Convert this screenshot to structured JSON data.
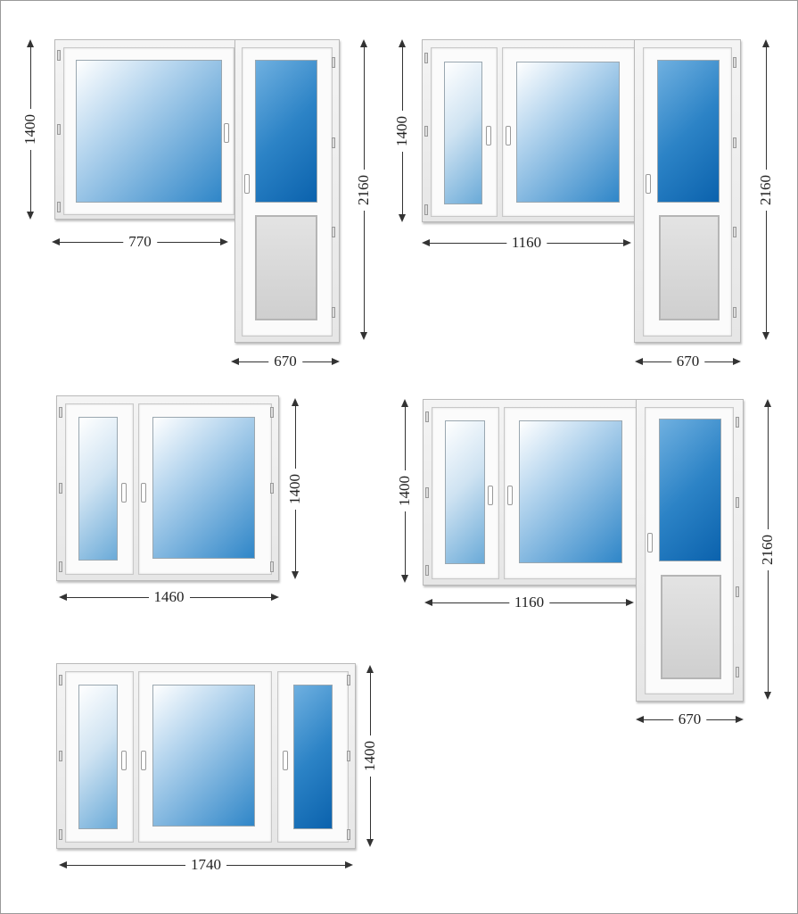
{
  "diagrams": [
    {
      "name": "window-with-balcony-door-1",
      "dims": {
        "window_height": "1400",
        "window_width": "770",
        "door_height": "2160",
        "door_width": "670"
      }
    },
    {
      "name": "window-with-balcony-door-2",
      "dims": {
        "window_height": "1400",
        "window_width": "1160",
        "door_height": "2160",
        "door_width": "670"
      }
    },
    {
      "name": "two-sash-window",
      "dims": {
        "height": "1400",
        "width": "1460"
      }
    },
    {
      "name": "window-with-balcony-door-3",
      "dims": {
        "window_height": "1400",
        "window_width": "1160",
        "door_height": "2160",
        "door_width": "670"
      }
    },
    {
      "name": "three-sash-window",
      "dims": {
        "height": "1400",
        "width": "1740"
      }
    }
  ],
  "colors": {
    "glass_light": "#cfe3f2",
    "glass_blue": "#2f86c8",
    "glass_dark": "#0b62ad",
    "door_panel": "#d8d8d8",
    "frame": "#f4f4f4"
  }
}
